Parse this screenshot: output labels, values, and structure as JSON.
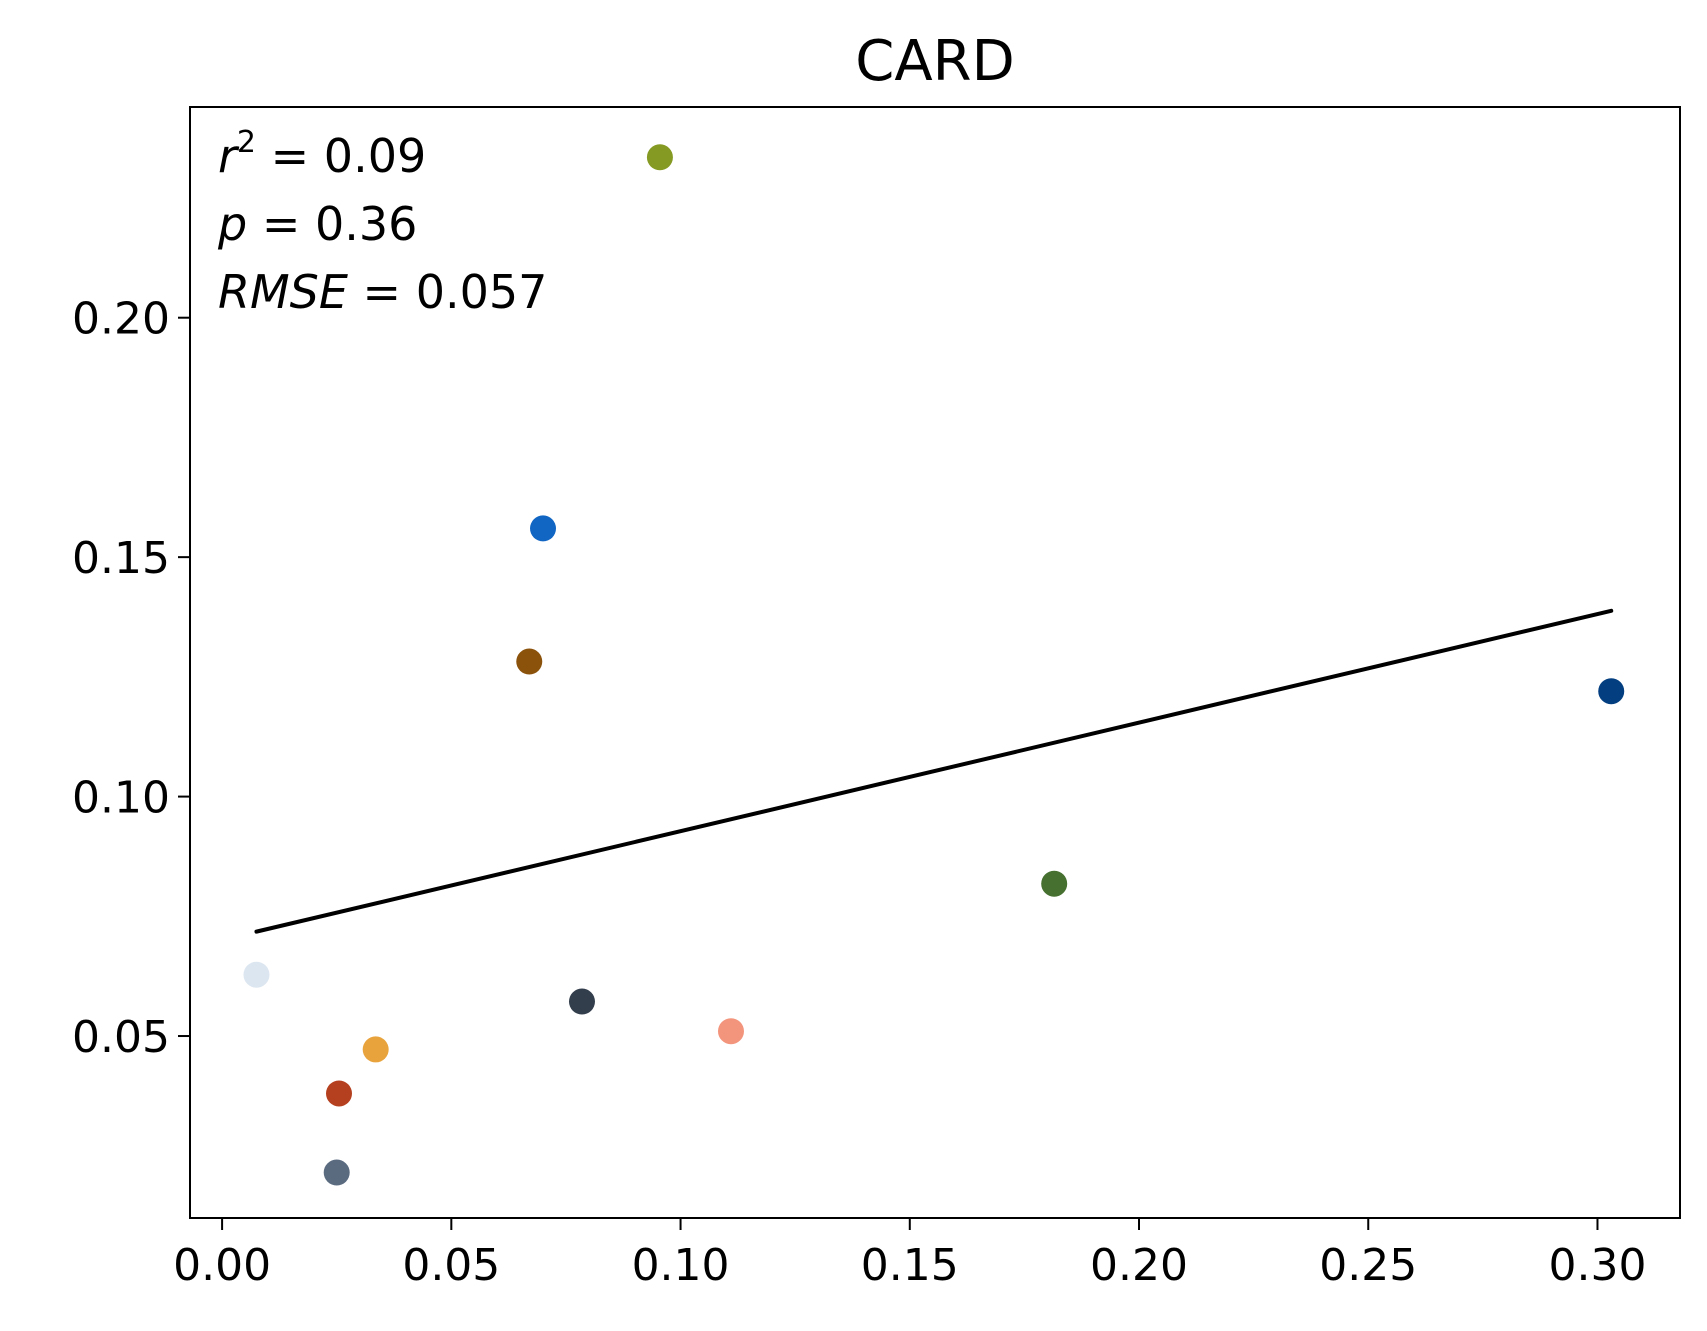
{
  "chart_data": {
    "type": "scatter",
    "title": "CARD",
    "xlabel": "",
    "ylabel": "",
    "xlim": [
      -0.007,
      0.318
    ],
    "ylim": [
      0.012,
      0.244
    ],
    "x_ticks": [
      0.0,
      0.05,
      0.1,
      0.15,
      0.2,
      0.25,
      0.3
    ],
    "x_tick_labels": [
      "0.00",
      "0.05",
      "0.10",
      "0.15",
      "0.20",
      "0.25",
      "0.30"
    ],
    "y_ticks": [
      0.05,
      0.1,
      0.15,
      0.2
    ],
    "y_tick_labels": [
      "0.05",
      "0.10",
      "0.15",
      "0.20"
    ],
    "grid": false,
    "points": [
      {
        "x": 0.0075,
        "y": 0.0628,
        "color": "#dce6f0"
      },
      {
        "x": 0.025,
        "y": 0.0215,
        "color": "#5a6b80"
      },
      {
        "x": 0.0255,
        "y": 0.038,
        "color": "#b5401f"
      },
      {
        "x": 0.0335,
        "y": 0.0472,
        "color": "#e8a33c"
      },
      {
        "x": 0.067,
        "y": 0.1282,
        "color": "#8b520c"
      },
      {
        "x": 0.07,
        "y": 0.156,
        "color": "#1166c4"
      },
      {
        "x": 0.0785,
        "y": 0.0572,
        "color": "#333e4c"
      },
      {
        "x": 0.0955,
        "y": 0.2335,
        "color": "#849a22"
      },
      {
        "x": 0.111,
        "y": 0.051,
        "color": "#f3957d"
      },
      {
        "x": 0.1815,
        "y": 0.0818,
        "color": "#45702f"
      },
      {
        "x": 0.303,
        "y": 0.122,
        "color": "#033f80"
      }
    ],
    "fit_line": {
      "x": [
        0.0075,
        0.303
      ],
      "y": [
        0.0718,
        0.1388
      ],
      "color": "#000000"
    },
    "annotations": {
      "r2_symbol": "r",
      "r2_exp": "2",
      "r2_value": " = 0.09",
      "p_symbol": "p",
      "p_value": " = 0.36",
      "rmse_symbol": "RMSE",
      "rmse_value": " = 0.057"
    }
  }
}
